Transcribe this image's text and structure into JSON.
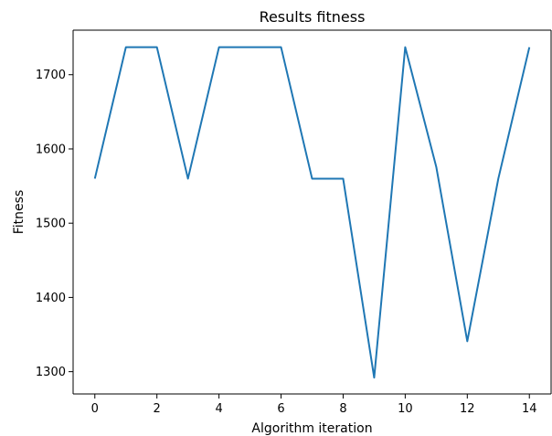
{
  "chart_data": {
    "type": "line",
    "title": "Results fitness",
    "xlabel": "Algorithm iteration",
    "ylabel": "Fitness",
    "x": [
      0,
      1,
      2,
      3,
      4,
      5,
      6,
      7,
      8,
      9,
      10,
      11,
      12,
      13,
      14
    ],
    "series": [
      {
        "values": [
          1560,
          1737,
          1737,
          1560,
          1737,
          1737,
          1737,
          1560,
          1560,
          1292,
          1737,
          1576,
          1341,
          1560,
          1737
        ],
        "color": "#1f77b4"
      }
    ],
    "xticks": [
      0,
      2,
      4,
      6,
      8,
      10,
      12,
      14
    ],
    "yticks": [
      1300,
      1400,
      1500,
      1600,
      1700
    ],
    "xlim": [
      -0.7,
      14.7
    ],
    "ylim": [
      1270,
      1760
    ],
    "grid": false,
    "legend": "none"
  }
}
